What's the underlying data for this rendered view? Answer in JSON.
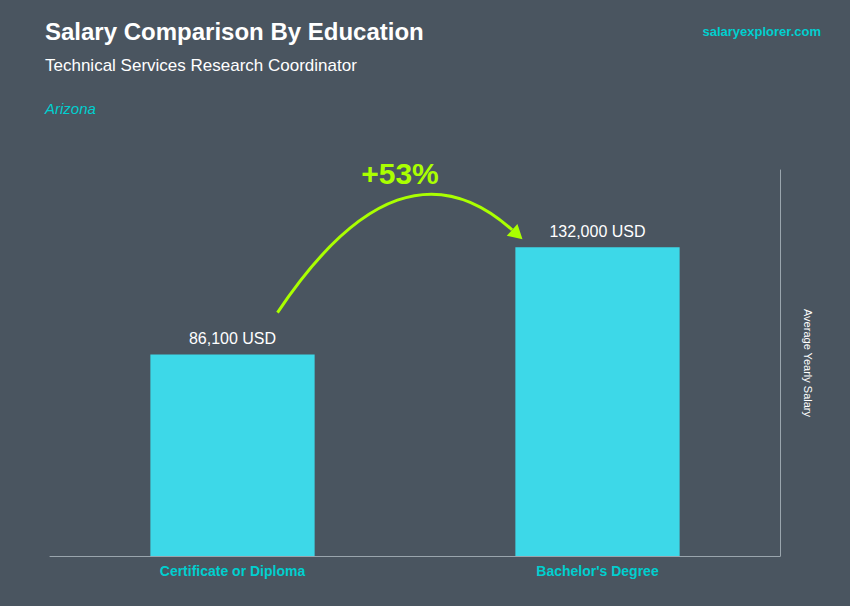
{
  "chart_data": {
    "type": "bar",
    "title": "Salary Comparison By Education",
    "subtitle": "Technical Services Research Coordinator",
    "location": "Arizona",
    "brand": "salaryexplorer.com",
    "categories": [
      "Certificate or Diploma",
      "Bachelor's Degree"
    ],
    "values": [
      86100,
      132000
    ],
    "value_labels": [
      "86,100 USD",
      "132,000 USD"
    ],
    "data_labels": true,
    "color": "#3DD8E8",
    "annotation": "+53%",
    "ylabel": "Average Yearly Salary",
    "ylim": [
      0,
      165000
    ],
    "grid": false,
    "tick_labels": "x"
  }
}
